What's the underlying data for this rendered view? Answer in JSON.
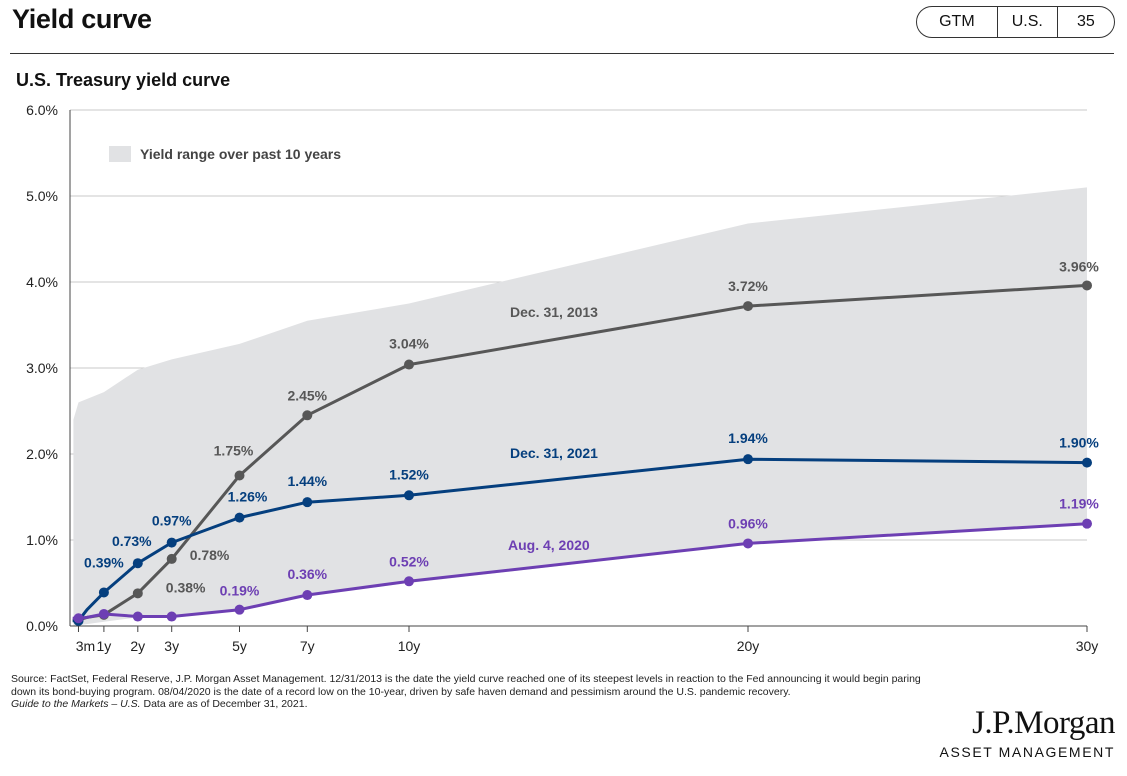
{
  "page": {
    "title": "Yield curve",
    "tabs": [
      "GTM",
      "U.S.",
      "35"
    ]
  },
  "chart_data": {
    "type": "line",
    "title": "U.S. Treasury yield curve",
    "xlabel": "",
    "ylabel": "",
    "x_tick_labels": [
      "3m",
      "1y",
      "2y",
      "3y",
      "5y",
      "7y",
      "10y",
      "20y",
      "30y"
    ],
    "x_tick_maturity_years": [
      0.25,
      1,
      2,
      3,
      5,
      7,
      10,
      20,
      30
    ],
    "ylim": [
      0,
      6
    ],
    "y_ticks": [
      "0.0%",
      "1.0%",
      "2.0%",
      "3.0%",
      "4.0%",
      "5.0%",
      "6.0%"
    ],
    "grid": "horizontal",
    "range_band": {
      "name": "Yield range over past 10 years",
      "color": "#e1e2e4",
      "upper": [
        {
          "x": 0.1,
          "y": 2.4
        },
        {
          "x": 0.25,
          "y": 2.6
        },
        {
          "x": 1,
          "y": 2.72
        },
        {
          "x": 2,
          "y": 2.98
        },
        {
          "x": 3,
          "y": 3.1
        },
        {
          "x": 5,
          "y": 3.28
        },
        {
          "x": 7,
          "y": 3.55
        },
        {
          "x": 10,
          "y": 3.75
        },
        {
          "x": 20,
          "y": 4.68
        },
        {
          "x": 30,
          "y": 5.1
        }
      ],
      "lower": [
        {
          "x": 0.1,
          "y": 0.0
        },
        {
          "x": 1,
          "y": 0.05
        },
        {
          "x": 2,
          "y": 0.1
        },
        {
          "x": 3,
          "y": 0.1
        },
        {
          "x": 5,
          "y": 0.18
        },
        {
          "x": 7,
          "y": 0.35
        },
        {
          "x": 10,
          "y": 0.5
        },
        {
          "x": 20,
          "y": 0.95
        },
        {
          "x": 30,
          "y": 1.18
        }
      ]
    },
    "series": [
      {
        "name": "Dec. 31, 2013",
        "color": "#575757",
        "x": [
          0.08,
          0.25,
          0.5,
          1,
          2,
          3,
          5,
          7,
          10,
          20,
          30
        ],
        "values": [
          0.07,
          0.07,
          0.1,
          0.13,
          0.38,
          0.78,
          1.75,
          2.45,
          3.04,
          3.72,
          3.96
        ],
        "labels": [
          "",
          "",
          "",
          "",
          "0.38%",
          "0.78%",
          "1.75%",
          "2.45%",
          "3.04%",
          "3.72%",
          "3.96%"
        ]
      },
      {
        "name": "Dec. 31, 2021",
        "color": "#053f7e",
        "x": [
          0.08,
          0.25,
          0.5,
          1,
          2,
          3,
          5,
          7,
          10,
          20,
          30
        ],
        "values": [
          0.06,
          0.06,
          0.19,
          0.39,
          0.73,
          0.97,
          1.26,
          1.44,
          1.52,
          1.94,
          1.9
        ],
        "labels": [
          "",
          "",
          "",
          "0.39%",
          "0.73%",
          "0.97%",
          "1.26%",
          "1.44%",
          "1.52%",
          "1.94%",
          "1.90%"
        ]
      },
      {
        "name": "Aug. 4, 2020",
        "color": "#6d3fb3",
        "x": [
          0.08,
          0.25,
          0.5,
          1,
          2,
          3,
          5,
          7,
          10,
          20,
          30
        ],
        "values": [
          0.09,
          0.09,
          0.1,
          0.14,
          0.11,
          0.11,
          0.19,
          0.36,
          0.52,
          0.96,
          1.19
        ],
        "labels": [
          "",
          "",
          "",
          "",
          "",
          "",
          "0.19%",
          "0.36%",
          "0.52%",
          "0.96%",
          "1.19%"
        ]
      }
    ]
  },
  "footer": {
    "source_text": "Source: FactSet, Federal Reserve, J.P. Morgan Asset Management. 12/31/2013 is the date the yield curve reached one of its steepest levels in reaction to the Fed announcing it would begin paring down its bond-buying program. 08/04/2020 is the date of a record low on the 10-year, driven by safe haven demand and pessimism around the U.S. pandemic recovery.",
    "guide_italic": "Guide to the Markets – U.S.",
    "guide_rest": " Data are as of December 31, 2021."
  },
  "logo": {
    "main": "J.P.Morgan",
    "sub": "ASSET MANAGEMENT"
  }
}
